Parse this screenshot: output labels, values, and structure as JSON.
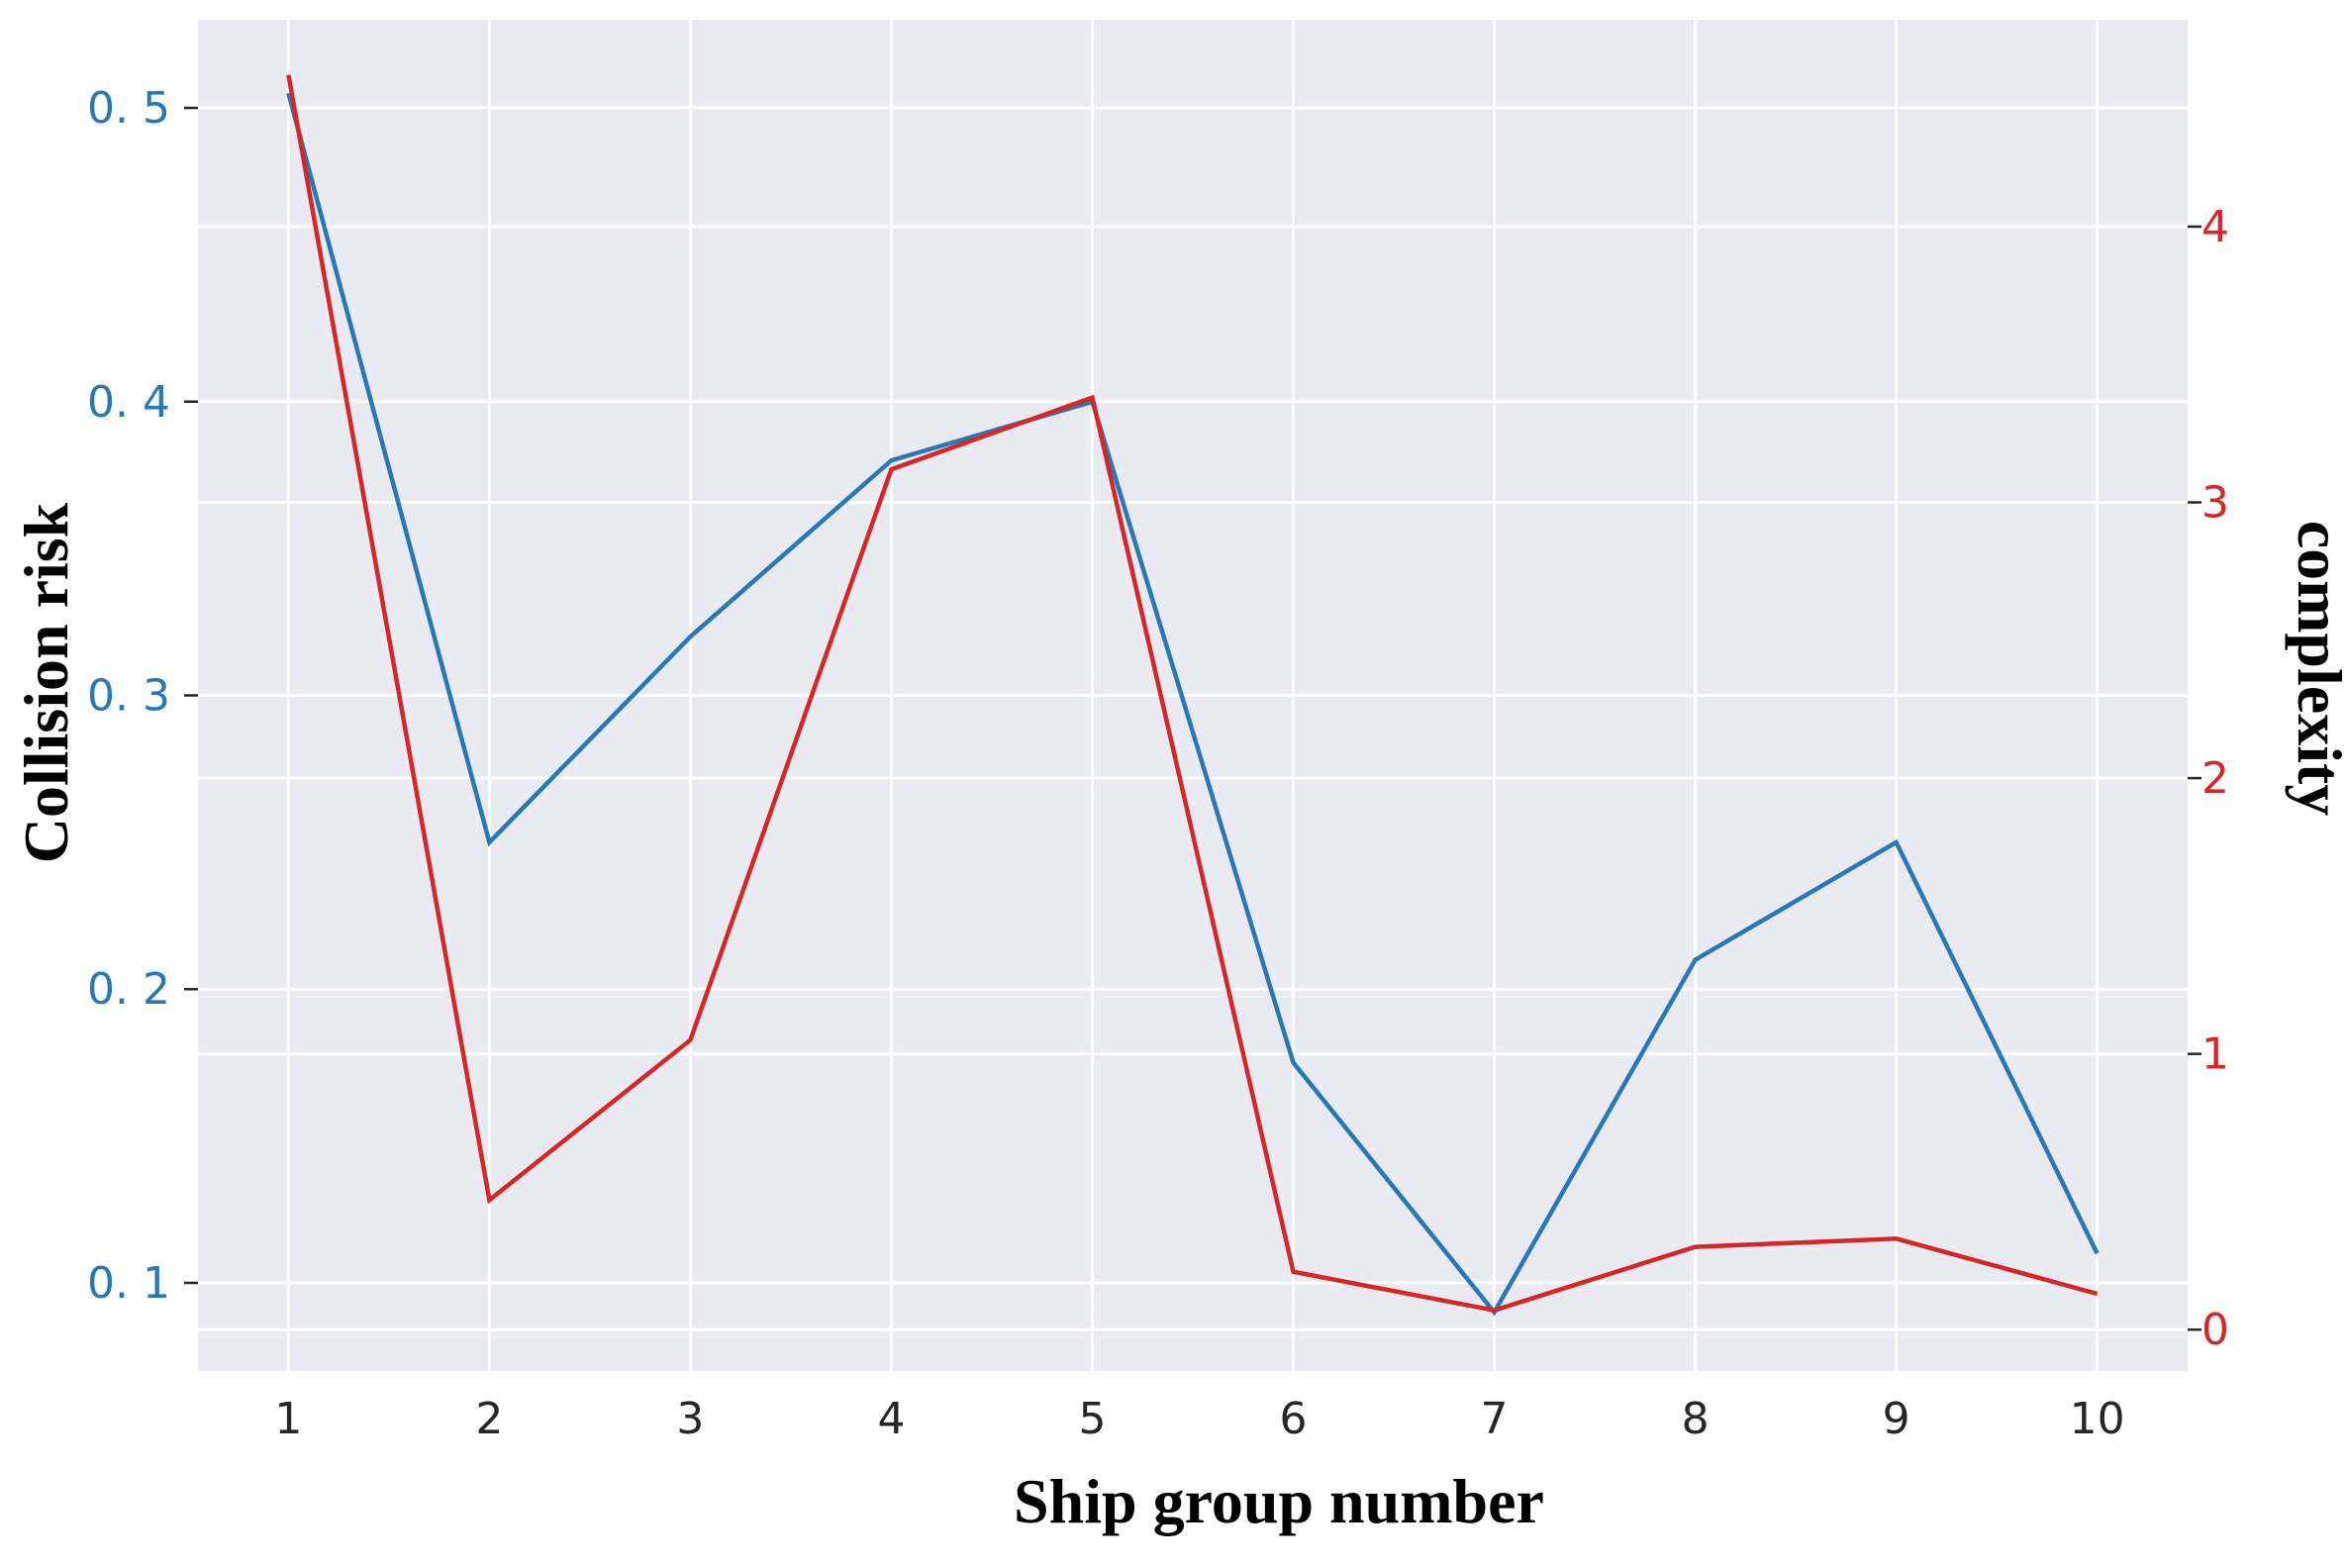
{
  "chart_data": {
    "type": "line",
    "x": [
      1,
      2,
      3,
      4,
      5,
      6,
      7,
      8,
      9,
      10
    ],
    "xlabel": "Ship group number",
    "x_ticks": [
      "1",
      "2",
      "3",
      "4",
      "5",
      "6",
      "7",
      "8",
      "9",
      "10"
    ],
    "grid": true,
    "background": "#EAEAF2",
    "grid_color": "#FFFFFF",
    "left_axis": {
      "label": "Collision risk",
      "range": [
        0.07,
        0.53
      ],
      "ticks": [
        0.1,
        0.2,
        0.3,
        0.4,
        0.5
      ],
      "tick_labels": [
        "0. 1",
        "0. 2",
        "0. 3",
        "0. 4",
        "0. 5"
      ],
      "color": "#2878B5"
    },
    "right_axis": {
      "label": "complexity",
      "range": [
        -0.15,
        4.75
      ],
      "ticks": [
        0,
        1,
        2,
        3,
        4
      ],
      "tick_labels": [
        "0",
        "1",
        "2",
        "3",
        "4"
      ],
      "color": "#D62728"
    },
    "series": [
      {
        "axis": "left",
        "color": "#2878B5",
        "values": [
          0.505,
          0.25,
          0.32,
          0.38,
          0.4,
          0.175,
          0.09,
          0.21,
          0.25,
          0.11
        ]
      },
      {
        "axis": "right",
        "color": "#D62728",
        "values": [
          4.55,
          0.47,
          1.05,
          3.12,
          3.38,
          0.21,
          0.07,
          0.3,
          0.33,
          0.13
        ]
      }
    ]
  }
}
